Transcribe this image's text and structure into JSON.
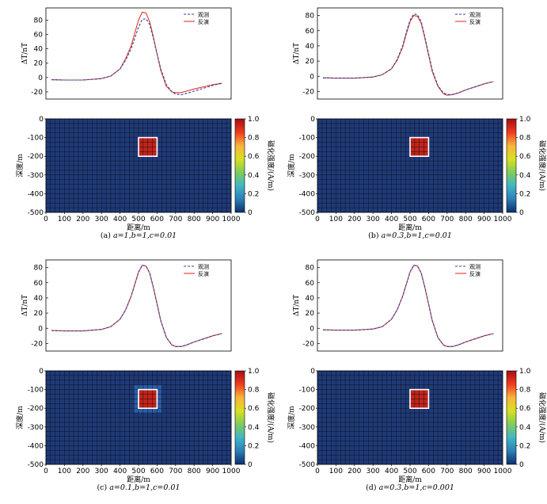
{
  "colors": {
    "observed": "#2b3fa0",
    "inverted": "#e0352a",
    "section_background": "#1f3a78",
    "grid": "#0a0a0a",
    "body_fill": "#c0241c",
    "body_outline": "#ffffff"
  },
  "colorbar": {
    "ticks": [
      "1.0",
      "0.8",
      "0.6",
      "0.4",
      "0.2",
      "0"
    ],
    "label": "磁化强度/(A/m)",
    "stops": [
      "#08306b",
      "#2c7fb8",
      "#41b6c4",
      "#7fcd5a",
      "#d9e021",
      "#f7b43a",
      "#f03b20",
      "#a50f15"
    ]
  },
  "chart_data": [
    {
      "id": "a",
      "type": "line",
      "caption": {
        "prefix": "(a)",
        "text": "a=1,b=1,c=0.01"
      },
      "profile": {
        "ylabel": "ΔT/nT",
        "yticks": [
          80,
          60,
          40,
          20,
          0,
          -20
        ],
        "ylim": [
          -30,
          97
        ],
        "xlim": [
          0,
          1000
        ],
        "legend": [
          "观测",
          "反演"
        ],
        "observed": {
          "x": [
            30,
            100,
            200,
            300,
            350,
            400,
            430,
            460,
            480,
            500,
            520,
            540,
            560,
            580,
            600,
            620,
            650,
            680,
            700,
            730,
            760,
            800,
            850,
            900,
            950
          ],
          "y": [
            -3,
            -3.5,
            -3.5,
            -1.5,
            2,
            12,
            24,
            40,
            55,
            70,
            81,
            82,
            74,
            55,
            33,
            12,
            -10,
            -20,
            -23,
            -24,
            -22,
            -19,
            -15,
            -11,
            -8
          ]
        },
        "inverted": {
          "x": [
            30,
            100,
            200,
            300,
            350,
            400,
            430,
            460,
            480,
            500,
            520,
            540,
            560,
            580,
            600,
            620,
            650,
            680,
            700,
            730,
            760,
            800,
            850,
            900,
            950
          ],
          "y": [
            -3,
            -3.5,
            -3.5,
            -1.5,
            2,
            12,
            26,
            44,
            62,
            80,
            91,
            90,
            78,
            57,
            33,
            10,
            -12,
            -20,
            -21,
            -21,
            -19,
            -16,
            -13,
            -10,
            -8
          ]
        }
      },
      "section": {
        "xlabel": "距离/m",
        "ylabel": "深度/m",
        "xticks": [
          0,
          100,
          200,
          300,
          400,
          500,
          600,
          700,
          800,
          900,
          1000
        ],
        "yticks": [
          0,
          -100,
          -200,
          -300,
          -400,
          -500
        ],
        "xlim": [
          0,
          1000
        ],
        "ylim": [
          -500,
          0
        ],
        "body": {
          "x": [
            500,
            600
          ],
          "depth": [
            100,
            200
          ],
          "magnetization": 1.0
        },
        "halo": 0.0
      }
    },
    {
      "id": "b",
      "type": "line",
      "caption": {
        "prefix": "(b)",
        "text": "a=0.3,b=1,c=0.01"
      },
      "profile": {
        "ylabel": "ΔT/nT",
        "yticks": [
          80,
          60,
          40,
          20,
          0,
          -20
        ],
        "ylim": [
          -30,
          90
        ],
        "xlim": [
          0,
          1000
        ],
        "legend": [
          "观测",
          "反演"
        ],
        "observed": {
          "x": [
            30,
            100,
            200,
            300,
            350,
            400,
            430,
            460,
            480,
            500,
            520,
            540,
            560,
            580,
            600,
            620,
            650,
            680,
            700,
            730,
            760,
            800,
            850,
            900,
            950
          ],
          "y": [
            -2,
            -2.5,
            -2.5,
            -1,
            2,
            10,
            22,
            40,
            58,
            74,
            82,
            81,
            72,
            52,
            30,
            8,
            -12,
            -22,
            -24,
            -24,
            -22,
            -18,
            -14,
            -10,
            -7
          ]
        },
        "inverted": {
          "x": [
            30,
            100,
            200,
            300,
            350,
            400,
            430,
            460,
            480,
            500,
            520,
            540,
            560,
            580,
            600,
            620,
            650,
            680,
            700,
            730,
            760,
            800,
            850,
            900,
            950
          ],
          "y": [
            -2,
            -2.5,
            -2.5,
            -1,
            2,
            10,
            21,
            38,
            56,
            72,
            80,
            79,
            70,
            50,
            28,
            6,
            -13,
            -23,
            -25,
            -24,
            -22,
            -18,
            -14,
            -10,
            -7
          ]
        }
      },
      "section": {
        "xlabel": "距离/m",
        "ylabel": "深度/m",
        "xticks": [
          0,
          100,
          200,
          300,
          400,
          500,
          600,
          700,
          800,
          900,
          1000
        ],
        "yticks": [
          0,
          -100,
          -200,
          -300,
          -400,
          -500
        ],
        "xlim": [
          0,
          1000
        ],
        "ylim": [
          -500,
          0
        ],
        "body": {
          "x": [
            500,
            600
          ],
          "depth": [
            100,
            200
          ],
          "magnetization": 1.0
        },
        "halo": 0.0
      }
    },
    {
      "id": "c",
      "type": "line",
      "caption": {
        "prefix": "(c)",
        "text": "a=0.1,b=1,c=0.01"
      },
      "profile": {
        "ylabel": "ΔT/nT",
        "yticks": [
          80,
          60,
          40,
          20,
          0,
          -20
        ],
        "ylim": [
          -30,
          90
        ],
        "xlim": [
          0,
          1000
        ],
        "legend": [
          "观测",
          "反演"
        ],
        "observed": {
          "x": [
            30,
            100,
            200,
            300,
            350,
            400,
            430,
            460,
            480,
            500,
            520,
            540,
            560,
            580,
            600,
            620,
            650,
            680,
            700,
            730,
            760,
            800,
            850,
            900,
            950
          ],
          "y": [
            -3,
            -3.5,
            -3.5,
            -1.5,
            2,
            12,
            24,
            42,
            58,
            74,
            83,
            82,
            73,
            54,
            32,
            10,
            -12,
            -22,
            -24,
            -24,
            -22,
            -18,
            -14,
            -10,
            -7
          ]
        },
        "inverted": {
          "x": [
            30,
            100,
            200,
            300,
            350,
            400,
            430,
            460,
            480,
            500,
            520,
            540,
            560,
            580,
            600,
            620,
            650,
            680,
            700,
            730,
            760,
            800,
            850,
            900,
            950
          ],
          "y": [
            -3,
            -3.5,
            -3.5,
            -1.5,
            2,
            12,
            24,
            42,
            58,
            74,
            83,
            82,
            73,
            54,
            32,
            10,
            -12,
            -22,
            -24,
            -24,
            -22,
            -18,
            -14,
            -10,
            -7
          ]
        }
      },
      "section": {
        "xlabel": "距离/m",
        "ylabel": "深度/m",
        "xticks": [
          0,
          100,
          200,
          300,
          400,
          500,
          600,
          700,
          800,
          900,
          1000
        ],
        "yticks": [
          0,
          -100,
          -200,
          -300,
          -400,
          -500
        ],
        "xlim": [
          0,
          1000
        ],
        "ylim": [
          -500,
          0
        ],
        "body": {
          "x": [
            500,
            600
          ],
          "depth": [
            100,
            200
          ],
          "magnetization": 1.0
        },
        "halo": 0.15
      }
    },
    {
      "id": "d",
      "type": "line",
      "caption": {
        "prefix": "(d)",
        "text": "a=0.3,b=1,c=0.001"
      },
      "profile": {
        "ylabel": "ΔT/nT",
        "yticks": [
          80,
          60,
          40,
          20,
          0,
          -20
        ],
        "ylim": [
          -30,
          90
        ],
        "xlim": [
          0,
          1000
        ],
        "legend": [
          "观测",
          "反演"
        ],
        "observed": {
          "x": [
            30,
            100,
            200,
            300,
            350,
            400,
            430,
            460,
            480,
            500,
            520,
            540,
            560,
            580,
            600,
            620,
            650,
            680,
            700,
            730,
            760,
            800,
            850,
            900,
            950
          ],
          "y": [
            -2,
            -2.5,
            -2.5,
            -1,
            2,
            12,
            24,
            42,
            58,
            74,
            83,
            82,
            73,
            54,
            32,
            10,
            -12,
            -22,
            -24,
            -24,
            -22,
            -18,
            -14,
            -10,
            -7
          ]
        },
        "inverted": {
          "x": [
            30,
            100,
            200,
            300,
            350,
            400,
            430,
            460,
            480,
            500,
            520,
            540,
            560,
            580,
            600,
            620,
            650,
            680,
            700,
            730,
            760,
            800,
            850,
            900,
            950
          ],
          "y": [
            -2,
            -2.5,
            -2.5,
            -1,
            2,
            12,
            24,
            42,
            58,
            74,
            83,
            82,
            73,
            54,
            32,
            10,
            -12,
            -22,
            -24,
            -24,
            -22,
            -18,
            -14,
            -10,
            -7
          ]
        }
      },
      "section": {
        "xlabel": "距离/m",
        "ylabel": "深度/m",
        "xticks": [
          0,
          100,
          200,
          300,
          400,
          500,
          600,
          700,
          800,
          900,
          1000
        ],
        "yticks": [
          0,
          -100,
          -200,
          -300,
          -400,
          -500
        ],
        "xlim": [
          0,
          1000
        ],
        "ylim": [
          -500,
          0
        ],
        "body": {
          "x": [
            500,
            600
          ],
          "depth": [
            100,
            200
          ],
          "magnetization": 1.0
        },
        "halo": 0.0
      }
    }
  ]
}
